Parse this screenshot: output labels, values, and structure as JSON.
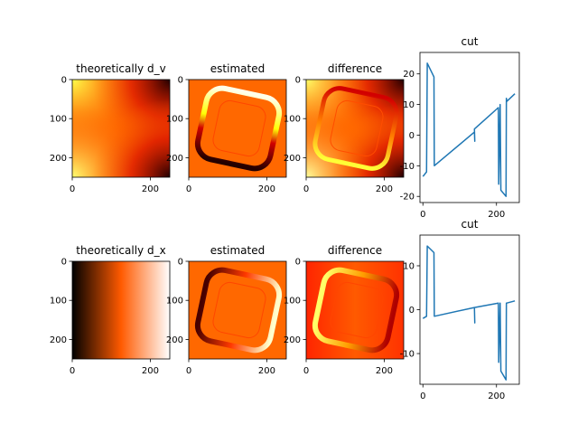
{
  "chart_data": [
    {
      "type": "heatmap",
      "row": 1,
      "col": 1,
      "title": "theoretically d_v",
      "xticks": [
        "0",
        "200"
      ],
      "yticks": [
        "0",
        "100",
        "200"
      ],
      "colormap": "hot",
      "pattern": "quadrant-radial"
    },
    {
      "type": "heatmap",
      "row": 1,
      "col": 2,
      "title": "estimated",
      "xticks": [
        "0",
        "200"
      ],
      "yticks": [
        "0",
        "100",
        "200"
      ],
      "colormap": "hot",
      "pattern": "rounded-square-ring-dv"
    },
    {
      "type": "heatmap",
      "row": 1,
      "col": 3,
      "title": "difference",
      "xticks": [
        "0",
        "200"
      ],
      "yticks": [
        "0",
        "100",
        "200"
      ],
      "colormap": "hot",
      "pattern": "difference-dv"
    },
    {
      "type": "line",
      "row": 1,
      "col": 4,
      "title": "cut",
      "xlim": [
        -8,
        262
      ],
      "ylim": [
        -22,
        27
      ],
      "xticks": [
        0,
        200
      ],
      "yticks": [
        -20,
        -10,
        0,
        10,
        20
      ],
      "color": "#1f77b4",
      "x": [
        0,
        10,
        12,
        30,
        31,
        140,
        141,
        140,
        205,
        206,
        210,
        212,
        226,
        227,
        228,
        250
      ],
      "y": [
        -13.5,
        -12,
        23.5,
        19,
        -10,
        1,
        -2,
        2,
        9,
        -16,
        10,
        -18,
        -20,
        12,
        11,
        13.5
      ]
    },
    {
      "type": "heatmap",
      "row": 2,
      "col": 1,
      "title": "theoretically d_x",
      "xticks": [
        "0",
        "200"
      ],
      "yticks": [
        "0",
        "100",
        "200"
      ],
      "colormap": "hot",
      "pattern": "horizontal-gradient"
    },
    {
      "type": "heatmap",
      "row": 2,
      "col": 2,
      "title": "estimated",
      "xticks": [
        "0",
        "200"
      ],
      "yticks": [
        "0",
        "100",
        "200"
      ],
      "colormap": "hot",
      "pattern": "rounded-square-ring-dx"
    },
    {
      "type": "heatmap",
      "row": 2,
      "col": 3,
      "title": "difference",
      "xticks": [
        "0",
        "200"
      ],
      "yticks": [
        "0",
        "100",
        "200"
      ],
      "colormap": "hot",
      "pattern": "difference-dx"
    },
    {
      "type": "line",
      "row": 2,
      "col": 4,
      "title": "cut",
      "xlim": [
        -8,
        262
      ],
      "ylim": [
        -17,
        17
      ],
      "xticks": [
        0,
        200
      ],
      "yticks": [
        -10,
        0,
        10
      ],
      "color": "#1f77b4",
      "x": [
        0,
        10,
        12,
        30,
        31,
        140,
        141,
        140,
        205,
        206,
        210,
        212,
        226,
        227,
        228,
        250
      ],
      "y": [
        -2,
        -1.5,
        14.5,
        13,
        -1.5,
        0.5,
        -3,
        0.5,
        1.5,
        -12,
        1.5,
        -14,
        -16,
        1.5,
        1.5,
        2
      ]
    }
  ]
}
